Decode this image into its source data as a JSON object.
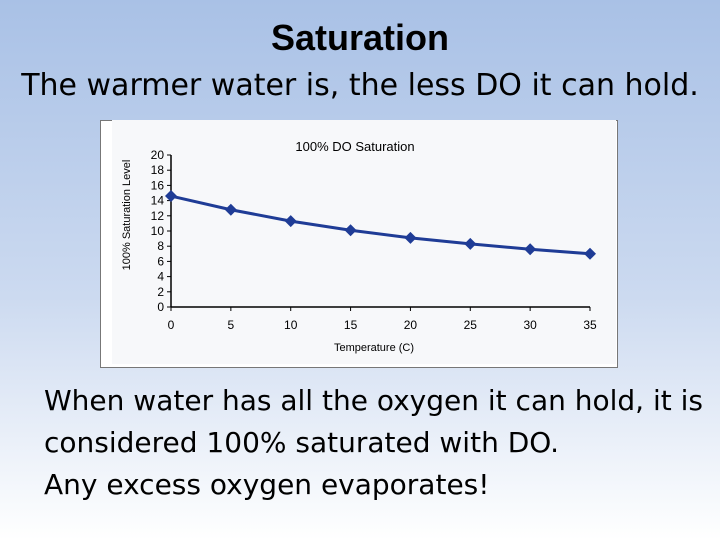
{
  "slide": {
    "title": "Saturation",
    "subtitle": "The warmer water is, the less DO it can hold.",
    "body_lines": [
      "When water has all the oxygen it can hold, it is considered 100% saturated with DO.",
      "Any excess oxygen evaporates!"
    ]
  },
  "chart_data": {
    "type": "line",
    "title": "100% DO Saturation",
    "xlabel": "Temperature (C)",
    "ylabel": "100% Saturation Level",
    "x": [
      0,
      5,
      10,
      15,
      20,
      25,
      30,
      35
    ],
    "xticks": [
      "0",
      "5",
      "10",
      "15",
      "20",
      "25",
      "30",
      "35"
    ],
    "yticks": [
      "0",
      "2",
      "4",
      "6",
      "8",
      "10",
      "12",
      "14",
      "16",
      "18",
      "20"
    ],
    "xlim": [
      0,
      35
    ],
    "ylim": [
      0,
      20
    ],
    "series": [
      {
        "name": "100% DO Saturation",
        "values": [
          14.6,
          12.8,
          11.3,
          10.1,
          9.1,
          8.3,
          7.6,
          7.0
        ]
      }
    ],
    "colors": {
      "line": "#1f3c96",
      "marker": "#1f3c96"
    }
  }
}
